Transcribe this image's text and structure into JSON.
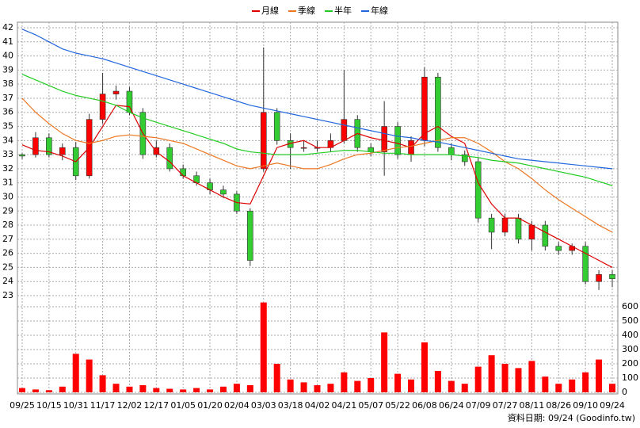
{
  "chart_data": {
    "type": "candlestick",
    "footer": "資料日期: 09/24 (Goodinfo.tw)",
    "legend": "top",
    "categories": [
      "09/25",
      null,
      "10/15",
      null,
      "10/31",
      null,
      "11/17",
      null,
      "12/02",
      null,
      "12/17",
      null,
      "01/05",
      null,
      "01/20",
      null,
      "02/04",
      null,
      "03/03",
      null,
      "03/18",
      null,
      "04/02",
      null,
      "04/21",
      null,
      "05/07",
      null,
      "05/22",
      null,
      "06/08",
      null,
      "06/24",
      null,
      "07/09",
      null,
      "07/27",
      null,
      "08/11",
      null,
      "08/26",
      null,
      "09/10",
      null,
      "09/24"
    ],
    "open": [
      33.0,
      33.0,
      34.2,
      33.0,
      33.5,
      31.5,
      35.5,
      37.3,
      37.5,
      36.0,
      33.0,
      33.5,
      32.0,
      31.5,
      31.0,
      30.5,
      30.2,
      29.0,
      32.0,
      36.0,
      34.0,
      33.5,
      33.5,
      33.5,
      34.0,
      35.5,
      33.5,
      33.2,
      35.0,
      33.0,
      34.0,
      38.5,
      33.5,
      33.0,
      32.5,
      28.5,
      27.5,
      28.5,
      27.0,
      28.0,
      26.5,
      26.2,
      26.5,
      24.0,
      24.5
    ],
    "high": [
      33.1,
      34.6,
      34.5,
      33.8,
      33.9,
      35.9,
      38.8,
      37.9,
      37.8,
      36.3,
      34.0,
      33.8,
      32.3,
      31.8,
      31.3,
      30.8,
      30.4,
      29.2,
      40.6,
      36.3,
      34.5,
      34.0,
      34.0,
      34.5,
      39.0,
      35.8,
      33.8,
      36.8,
      35.3,
      34.3,
      39.2,
      38.8,
      33.8,
      33.3,
      32.8,
      28.8,
      28.8,
      28.8,
      28.3,
      28.3,
      26.8,
      26.7,
      26.8,
      24.8,
      24.8
    ],
    "low": [
      32.7,
      32.8,
      32.8,
      32.6,
      31.2,
      31.3,
      35.2,
      36.9,
      35.8,
      32.7,
      32.8,
      31.8,
      31.3,
      30.8,
      30.2,
      29.9,
      28.8,
      25.1,
      31.8,
      33.7,
      32.0,
      33.2,
      33.2,
      33.2,
      33.8,
      33.2,
      32.9,
      31.5,
      32.7,
      32.5,
      33.6,
      33.2,
      32.6,
      32.2,
      28.2,
      26.3,
      27.2,
      26.7,
      26.2,
      26.2,
      25.9,
      25.9,
      23.8,
      23.4,
      23.6
    ],
    "close": [
      32.9,
      34.2,
      33.0,
      33.5,
      31.5,
      35.5,
      37.3,
      37.5,
      36.0,
      33.0,
      33.5,
      32.0,
      31.5,
      31.0,
      30.5,
      30.2,
      29.0,
      25.5,
      36.0,
      34.0,
      33.5,
      33.5,
      33.5,
      34.0,
      35.5,
      33.5,
      33.2,
      35.0,
      33.0,
      34.0,
      38.5,
      33.5,
      33.0,
      32.5,
      28.5,
      27.5,
      28.5,
      27.0,
      28.0,
      26.5,
      26.2,
      26.5,
      24.0,
      24.5,
      24.2
    ],
    "volume": [
      30,
      20,
      15,
      40,
      270,
      230,
      120,
      60,
      40,
      50,
      30,
      25,
      20,
      30,
      20,
      40,
      60,
      50,
      630,
      200,
      90,
      70,
      50,
      60,
      140,
      80,
      100,
      420,
      130,
      90,
      350,
      150,
      80,
      60,
      180,
      260,
      200,
      170,
      220,
      110,
      60,
      90,
      140,
      230,
      60
    ],
    "up_color": "#ff0000",
    "down_color": "#33cc33",
    "volume_color": "#ff0000",
    "series": [
      {
        "name": "月線",
        "color": "#dd0000",
        "values": [
          33.7,
          33.3,
          33.2,
          32.9,
          32.5,
          33.5,
          35.0,
          36.5,
          36.4,
          34.5,
          33.2,
          32.5,
          31.5,
          31.0,
          30.5,
          30.0,
          29.6,
          29.5,
          31.5,
          33.5,
          33.8,
          34.0,
          33.5,
          33.5,
          34.0,
          34.5,
          34.2,
          34.0,
          33.8,
          33.5,
          34.5,
          35.0,
          34.3,
          33.8,
          31.0,
          29.5,
          28.5,
          28.5,
          28.0,
          27.5,
          27.0,
          26.5,
          26.0,
          25.5,
          25.0
        ]
      },
      {
        "name": "季線",
        "color": "#ee7722",
        "values": [
          37.0,
          36.0,
          35.2,
          34.5,
          34.0,
          33.8,
          34.0,
          34.3,
          34.4,
          34.3,
          34.2,
          34.0,
          33.8,
          33.4,
          33.0,
          32.6,
          32.2,
          32.0,
          32.2,
          32.4,
          32.2,
          32.0,
          32.0,
          32.3,
          32.7,
          33.0,
          33.1,
          33.3,
          33.5,
          33.6,
          33.8,
          34.0,
          34.2,
          34.2,
          33.8,
          33.2,
          32.5,
          32.0,
          31.3,
          30.5,
          29.8,
          29.2,
          28.6,
          28.0,
          27.5
        ]
      },
      {
        "name": "半年",
        "color": "#22cc22",
        "values": [
          38.7,
          38.3,
          37.9,
          37.5,
          37.2,
          37.0,
          36.8,
          36.5,
          36.0,
          35.6,
          35.3,
          35.0,
          34.7,
          34.4,
          34.1,
          33.8,
          33.4,
          33.2,
          33.1,
          33.0,
          33.0,
          33.0,
          33.1,
          33.2,
          33.3,
          33.3,
          33.2,
          33.1,
          33.1,
          33.0,
          33.0,
          33.0,
          33.0,
          32.9,
          32.8,
          32.6,
          32.5,
          32.4,
          32.2,
          32.0,
          31.8,
          31.6,
          31.4,
          31.1,
          30.8
        ]
      },
      {
        "name": "年線",
        "color": "#2266dd",
        "values": [
          41.9,
          41.5,
          41.0,
          40.5,
          40.2,
          40.0,
          39.8,
          39.5,
          39.2,
          38.9,
          38.6,
          38.3,
          38.0,
          37.7,
          37.4,
          37.1,
          36.8,
          36.5,
          36.3,
          36.1,
          35.9,
          35.7,
          35.5,
          35.3,
          35.1,
          34.9,
          34.7,
          34.5,
          34.3,
          34.2,
          34.0,
          33.9,
          33.7,
          33.5,
          33.3,
          33.1,
          32.9,
          32.7,
          32.6,
          32.5,
          32.4,
          32.3,
          32.2,
          32.1,
          32.0
        ]
      }
    ],
    "ylim": [
      23,
      42
    ],
    "yticks": [
      23,
      24,
      25,
      26,
      27,
      28,
      29,
      30,
      31,
      32,
      33,
      34,
      35,
      36,
      37,
      38,
      39,
      40,
      41,
      42
    ],
    "y2lim": [
      0,
      600
    ],
    "y2ticks": [
      0,
      100,
      200,
      300,
      400,
      500,
      600
    ],
    "grid": true
  }
}
